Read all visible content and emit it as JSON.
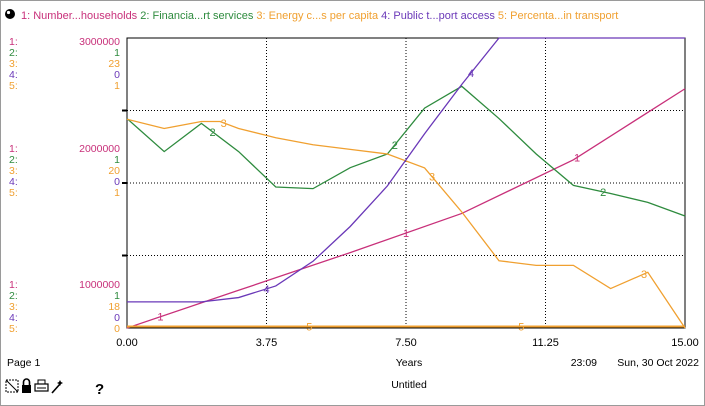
{
  "header": {
    "legend_items": [
      {
        "num": "1:",
        "label": "Number...households",
        "color": "#c8307a"
      },
      {
        "num": "2:",
        "label": "Financia...rt services",
        "color": "#2e8b3e"
      },
      {
        "num": "3:",
        "label": "Energy c...s per capita",
        "color": "#f0a030"
      },
      {
        "num": "4:",
        "label": "Public t...port access",
        "color": "#6a38b8"
      },
      {
        "num": "5:",
        "label": "Percenta...in transport",
        "color": "#f0a030"
      }
    ]
  },
  "scales": [
    {
      "labels": [
        "1:",
        "2:",
        "3:",
        "4:",
        "5:"
      ],
      "values": [
        "3000000",
        "1",
        "23",
        "0",
        "1"
      ]
    },
    {
      "labels": [
        "1:",
        "2:",
        "3:",
        "4:",
        "5:"
      ],
      "values": [
        "2000000",
        "1",
        "20",
        "0",
        "1"
      ]
    },
    {
      "labels": [
        "1:",
        "2:",
        "3:",
        "4:",
        "5:"
      ],
      "values": [
        "1000000",
        "1",
        "18",
        "0",
        "0"
      ]
    }
  ],
  "footer": {
    "page_label": "Page 1",
    "x_axis_title": "Years",
    "time_label": "23:09",
    "date_label": "Sun, 30 Oct 2022",
    "doc_title": "Untitled",
    "help_symbol": "?"
  },
  "colors": {
    "s1": "#c8307a",
    "s2": "#2e8b3e",
    "s3": "#f0a030",
    "s4": "#6a38b8",
    "s5": "#f0a030"
  },
  "chart_data": {
    "type": "line",
    "xlabel": "Years",
    "xlim": [
      0,
      15
    ],
    "x_ticks": [
      "0.00",
      "3.75",
      "7.50",
      "11.25",
      "15.00"
    ],
    "x_tick_values": [
      0,
      3.75,
      7.5,
      11.25,
      15
    ],
    "grid": true,
    "series": [
      {
        "key": "s1",
        "name": "Number...households",
        "ylim": [
          1000000,
          3000000
        ],
        "x": [
          0,
          3,
          6,
          9,
          12,
          15
        ],
        "y": [
          1000000,
          1260000,
          1520000,
          1790000,
          2160000,
          2650000
        ],
        "labels_at": [
          0.9,
          7.5,
          12.1
        ],
        "label": "1"
      },
      {
        "key": "s2",
        "name": "Financia...rt services",
        "ylim": [
          0.82,
          1.18
        ],
        "x": [
          0,
          1,
          2,
          3,
          4,
          5,
          6,
          7,
          8,
          9,
          10,
          11,
          12,
          13,
          14,
          15
        ],
        "y": [
          1.08,
          1.039,
          1.074,
          1.039,
          0.995,
          0.993,
          1.019,
          1.036,
          1.093,
          1.12,
          1.08,
          1.036,
          0.997,
          0.987,
          0.976,
          0.959
        ],
        "labels_at": [
          2.3,
          7.2,
          12.8
        ],
        "label": "2"
      },
      {
        "key": "s3",
        "name": "Energy c...s per capita",
        "ylim": [
          15.5,
          28.0
        ],
        "x": [
          0,
          1,
          2,
          2.5,
          3,
          4,
          5,
          6,
          7,
          8,
          9,
          10,
          11,
          11.5,
          12,
          13,
          14,
          15
        ],
        "y": [
          24.5,
          24.1,
          24.4,
          24.4,
          24.1,
          23.7,
          23.4,
          23.2,
          23.0,
          22.4,
          20.5,
          18.4,
          18.2,
          18.2,
          18.2,
          17.2,
          17.9,
          15.5
        ],
        "labels_at": [
          2.6,
          8.2,
          13.9
        ],
        "label": "3"
      },
      {
        "key": "s4",
        "name": "Public t...port access",
        "ylim": [
          0,
          1
        ],
        "x": [
          0,
          1,
          2,
          3,
          4,
          5,
          6,
          7,
          8,
          9,
          10,
          11,
          12,
          13,
          14,
          15
        ],
        "y": [
          0.09,
          0.09,
          0.09,
          0.105,
          0.145,
          0.23,
          0.35,
          0.49,
          0.67,
          0.84,
          1.0,
          1.04,
          1.04,
          1.04,
          1.04,
          1.04
        ],
        "labels_at": [
          3.75,
          9.25
        ],
        "label": "4"
      },
      {
        "key": "s5",
        "name": "Percenta...in transport",
        "ylim": [
          0,
          1
        ],
        "x": [
          0,
          15
        ],
        "y": [
          0.005,
          0.005
        ],
        "labels_at": [
          4.9,
          10.6
        ],
        "label": "5"
      }
    ]
  }
}
